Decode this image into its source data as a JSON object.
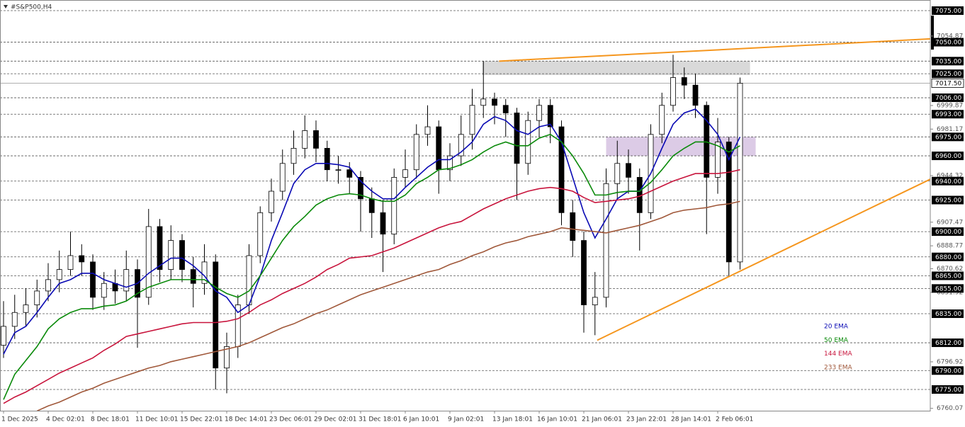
{
  "chart_data": {
    "type": "candlestick",
    "title": "#S&P500,H4",
    "categories": [
      "1 Dec 2025",
      null,
      null,
      null,
      "4 Dec 02:01",
      null,
      null,
      null,
      "8 Dec 18:01",
      null,
      null,
      null,
      "11 Dec 10:01",
      null,
      null,
      null,
      "15 Dec 22:01",
      null,
      null,
      null,
      "18 Dec 14:01",
      null,
      null,
      null,
      "23 Dec 06:01",
      null,
      null,
      null,
      "29 Dec 02:01",
      null,
      null,
      null,
      "31 Dec 18:01",
      null,
      null,
      null,
      "6 Jan 10:01",
      null,
      null,
      null,
      "9 Jan 02:01",
      null,
      null,
      null,
      "13 Jan 18:01",
      null,
      null,
      null,
      "16 Jan 10:01",
      null,
      null,
      null,
      "21 Jan 06:01",
      null,
      null,
      null,
      "23 Jan 22:01",
      null,
      null,
      null,
      "28 Jan 14:01",
      null,
      null,
      null,
      "2 Feb 06:01",
      null,
      null
    ],
    "ohlc": {
      "open": [
        6810,
        6825,
        6836,
        6842,
        6853,
        6862,
        6870,
        6881,
        6876,
        6848,
        6859,
        6853,
        6870,
        6848,
        6904,
        6870,
        6893,
        6870,
        6859,
        6876,
        6792,
        6809,
        6842,
        6881,
        6915,
        6932,
        6954,
        6966,
        6980,
        6966,
        6949,
        6949,
        6943,
        6926,
        6915,
        6898,
        6943,
        6949,
        6977,
        6983,
        6949,
        6960,
        6977,
        7000,
        7005,
        7000,
        6994,
        6954,
        6988,
        7000,
        6983,
        6915,
        6893,
        6842,
        6848,
        6938,
        6954,
        6943,
        6915,
        6977,
        7000,
        7022,
        7016,
        7000,
        6943,
        6971,
        6876
      ],
      "high": [
        6845,
        6850,
        6855,
        6862,
        6875,
        6885,
        6900,
        6890,
        6882,
        6868,
        6870,
        6885,
        6878,
        6918,
        6910,
        6905,
        6898,
        6880,
        6890,
        6882,
        6820,
        6850,
        6890,
        6920,
        6942,
        6965,
        6980,
        6992,
        6988,
        6972,
        6960,
        6955,
        6948,
        6935,
        6925,
        6950,
        6965,
        6985,
        7000,
        6988,
        6970,
        6992,
        7013,
        7035,
        7010,
        7005,
        6998,
        6995,
        7005,
        7005,
        6988,
        6925,
        6900,
        6868,
        6950,
        6972,
        6965,
        6950,
        6985,
        7010,
        7040,
        7030,
        7025,
        7003,
        6990,
        6975,
        7022
      ],
      "low": [
        6800,
        6815,
        6825,
        6832,
        6845,
        6852,
        6865,
        6865,
        6838,
        6838,
        6843,
        6845,
        6808,
        6842,
        6860,
        6862,
        6860,
        6840,
        6850,
        6775,
        6772,
        6800,
        6835,
        6875,
        6908,
        6925,
        6945,
        6958,
        6955,
        6940,
        6938,
        6930,
        6900,
        6895,
        6868,
        6890,
        6935,
        6942,
        6968,
        6930,
        6940,
        6952,
        6965,
        6990,
        6985,
        6975,
        6925,
        6945,
        6975,
        6970,
        6905,
        6880,
        6820,
        6818,
        6840,
        6925,
        6930,
        6885,
        6910,
        6970,
        6995,
        7005,
        6990,
        6898,
        6930,
        6865,
        6870
      ],
      "close": [
        6825,
        6836,
        6842,
        6853,
        6862,
        6870,
        6881,
        6876,
        6848,
        6859,
        6853,
        6870,
        6848,
        6904,
        6870,
        6893,
        6870,
        6859,
        6876,
        6792,
        6809,
        6842,
        6881,
        6915,
        6932,
        6954,
        6966,
        6980,
        6966,
        6949,
        6949,
        6943,
        6926,
        6915,
        6898,
        6943,
        6949,
        6977,
        6983,
        6949,
        6960,
        6977,
        7000,
        7005,
        7000,
        6994,
        6954,
        6988,
        7000,
        6983,
        6915,
        6893,
        6842,
        6848,
        6938,
        6954,
        6943,
        6915,
        6977,
        7000,
        7022,
        7016,
        7000,
        6943,
        6971,
        6876,
        7017.5
      ]
    },
    "series": [
      {
        "name": "20 EMA",
        "color": "#0a0ab4",
        "values": [
          6803,
          6820,
          6825,
          6836,
          6848,
          6859,
          6862,
          6867,
          6867,
          6862,
          6859,
          6856,
          6859,
          6867,
          6873,
          6879,
          6879,
          6873,
          6865,
          6853,
          6848,
          6836,
          6842,
          6865,
          6893,
          6915,
          6938,
          6949,
          6954,
          6954,
          6953,
          6951,
          6940,
          6932,
          6926,
          6926,
          6935,
          6943,
          6951,
          6957,
          6957,
          6963,
          6971,
          6985,
          6991,
          6988,
          6980,
          6977,
          6983,
          6985,
          6971,
          6943,
          6915,
          6895,
          6910,
          6926,
          6932,
          6932,
          6946,
          6966,
          6985,
          6994,
          6997,
          6988,
          6977,
          6957,
          6975
        ]
      },
      {
        "name": "50 EMA",
        "color": "#0a8a0a",
        "values": [
          6767,
          6787,
          6798,
          6809,
          6823,
          6831,
          6836,
          6839,
          6839,
          6841,
          6842,
          6845,
          6851,
          6856,
          6859,
          6862,
          6862,
          6862,
          6862,
          6856,
          6851,
          6848,
          6853,
          6865,
          6879,
          6893,
          6904,
          6912,
          6921,
          6926,
          6929,
          6930,
          6929,
          6926,
          6924,
          6924,
          6929,
          6938,
          6943,
          6949,
          6950,
          6953,
          6957,
          6963,
          6968,
          6971,
          6968,
          6968,
          6974,
          6977,
          6971,
          6960,
          6946,
          6929,
          6929,
          6931,
          6932,
          6932,
          6939,
          6949,
          6960,
          6966,
          6971,
          6971,
          6968,
          6963,
          6968
        ]
      },
      {
        "name": "144 EMA",
        "color": "#c8143c",
        "values": [
          6764,
          6769,
          6773,
          6778,
          6783,
          6788,
          6792,
          6796,
          6800,
          6806,
          6811,
          6817,
          6819,
          6821,
          6823,
          6825,
          6827,
          6828,
          6828,
          6828,
          6829,
          6831,
          6836,
          6842,
          6846,
          6851,
          6855,
          6859,
          6864,
          6870,
          6874,
          6879,
          6880,
          6881,
          6884,
          6887,
          6891,
          6895,
          6899,
          6903,
          6906,
          6908,
          6913,
          6918,
          6922,
          6926,
          6929,
          6932,
          6934,
          6935,
          6934,
          6932,
          6927,
          6923,
          6924,
          6925,
          6926,
          6928,
          6932,
          6936,
          6940,
          6943,
          6946,
          6946,
          6946,
          6947,
          6949
        ]
      },
      {
        "name": "233 EMA",
        "color": "#a0583a",
        "values": [
          null,
          null,
          null,
          6758,
          6762,
          6765,
          6769,
          6773,
          6776,
          6780,
          6783,
          6786,
          6789,
          6792,
          6794,
          6797,
          6799,
          6801,
          6803,
          6805,
          6807,
          6809,
          6812,
          6816,
          6820,
          6824,
          6827,
          6831,
          6835,
          6838,
          6842,
          6846,
          6850,
          6853,
          6856,
          6859,
          6862,
          6865,
          6868,
          6870,
          6874,
          6877,
          6881,
          6884,
          6888,
          6891,
          6893,
          6896,
          6898,
          6900,
          6903,
          6902,
          6901,
          6900,
          6899,
          6901,
          6903,
          6905,
          6908,
          6911,
          6915,
          6917,
          6918,
          6919,
          6921,
          6922,
          6924
        ]
      }
    ],
    "ylim": [
      6758.2,
      7083.4
    ],
    "yticks": [
      {
        "value": 7054.87,
        "label": "7054.87"
      },
      {
        "value": 6999.87,
        "label": "6999.87"
      },
      {
        "value": 6981.17,
        "label": "6981.17"
      },
      {
        "value": 6944.32,
        "label": "6944.32"
      },
      {
        "value": 6907.47,
        "label": "6907.47"
      },
      {
        "value": 6888.77,
        "label": "6888.77"
      },
      {
        "value": 6870.62,
        "label": "6870.62"
      },
      {
        "value": 6851.92,
        "label": "6851.92"
      },
      {
        "value": 6796.92,
        "label": "6796.92"
      },
      {
        "value": 6760.07,
        "label": "6760.07"
      }
    ],
    "levels": [
      {
        "value": 7075,
        "label": "7075.00"
      },
      {
        "value": 7050,
        "label": "7050.00"
      },
      {
        "value": 7035,
        "label": "7035.00"
      },
      {
        "value": 7025,
        "label": "7025.00"
      },
      {
        "value": 7006,
        "label": "7006.00"
      },
      {
        "value": 6993,
        "label": "6993.00"
      },
      {
        "value": 6975,
        "label": "6975.00"
      },
      {
        "value": 6960,
        "label": "6960.00"
      },
      {
        "value": 6940,
        "label": "6940.00"
      },
      {
        "value": 6925,
        "label": "6925.00"
      },
      {
        "value": 6900,
        "label": "6900.00"
      },
      {
        "value": 6880,
        "label": "6880.00"
      },
      {
        "value": 6865,
        "label": "6865.00"
      },
      {
        "value": 6855,
        "label": "6855.00"
      },
      {
        "value": 6835,
        "label": "6835.00"
      },
      {
        "value": 6812,
        "label": "6812.00"
      },
      {
        "value": 6790,
        "label": "6790.00"
      },
      {
        "value": 6775,
        "label": "6775.00"
      }
    ],
    "last_price": {
      "value": 7017.5,
      "label": "7017.50"
    },
    "zones": [
      {
        "low": 7024,
        "high": 7035,
        "start": 42.9,
        "end": 66.9,
        "color": "#d9d9d9"
      },
      {
        "low": 6960,
        "high": 6975,
        "start": 54,
        "end": 67.4,
        "color": "#dccbe6"
      }
    ],
    "trendlines": [
      {
        "x": [
          44.4,
          83.05
        ],
        "y": [
          7035,
          7052.6
        ],
        "color": "#f5961e"
      },
      {
        "x": [
          53.2,
          83.05
        ],
        "y": [
          6814,
          6941.5
        ],
        "color": "#f5961e"
      }
    ]
  }
}
